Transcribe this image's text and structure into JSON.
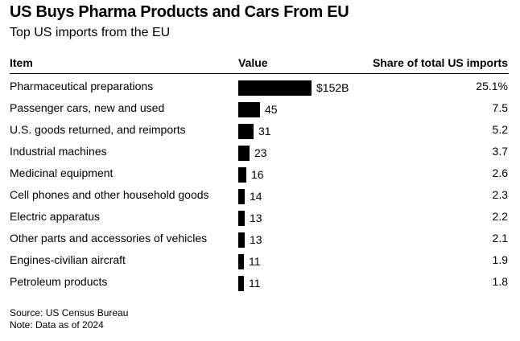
{
  "title": "US Buys Pharma Products and Cars From EU",
  "subtitle": "Top US imports from the EU",
  "table": {
    "header": {
      "item": "Item",
      "value": "Value",
      "share": "Share of total US imports"
    }
  },
  "chart_data": {
    "type": "bar",
    "title": "US Buys Pharma Products and Cars From EU",
    "subtitle": "Top US imports from the EU",
    "categories": [
      "Pharmaceutical preparations",
      "Passenger cars, new and used",
      "U.S. goods returned, and reimports",
      "Industrial machines",
      "Medicinal equipment",
      "Cell phones and other household goods",
      "Electric apparatus",
      "Other parts and accessories of vehicles",
      "Engines-civilian aircraft",
      "Petroleum products"
    ],
    "values": [
      152,
      45,
      31,
      23,
      16,
      14,
      13,
      13,
      11,
      11
    ],
    "value_labels": [
      "$152B",
      "45",
      "31",
      "23",
      "16",
      "14",
      "13",
      "13",
      "11",
      "11"
    ],
    "share": [
      "25.1%",
      "7.5",
      "5.2",
      "3.7",
      "2.6",
      "2.3",
      "2.2",
      "2.1",
      "1.9",
      "1.8"
    ],
    "bar_color": "#000000",
    "orientation": "horizontal"
  },
  "footer": {
    "source": "Source: US Census Bureau",
    "note": "Note: Data as of 2024"
  }
}
